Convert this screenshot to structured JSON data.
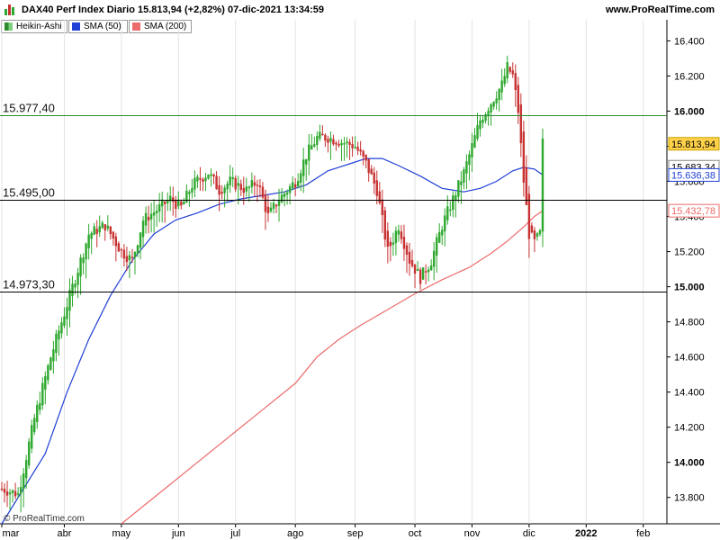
{
  "header": {
    "title": "DAX40 Perf Index Diario 15.813,94 (+2,82%) 07-dic-2021 13:34:59",
    "site": "www.ProRealTime.com"
  },
  "legend": [
    {
      "label": "Heikin-Ashi",
      "color": "#2e8b2e"
    },
    {
      "label": "SMA (50)",
      "color": "#1f3fd6"
    },
    {
      "label": "SMA (200)",
      "color": "#ec6b6b"
    }
  ],
  "watermark": "© ProRealTime.com",
  "colors": {
    "up": "#2ea82e",
    "down": "#c83232",
    "sma50": "#1f3fd6",
    "sma200": "#ec6b6b",
    "resistance": "#2e8b2e",
    "level": "#000000"
  },
  "chart_data": {
    "type": "candlestick",
    "subtype": "heikin-ashi",
    "y_axis_side": "right",
    "ylim": [
      13650,
      16520
    ],
    "ytick_labels": [
      "13.800",
      "14.000",
      "14.200",
      "14.400",
      "14.600",
      "14.800",
      "15.000",
      "15.200",
      "15.400",
      "15.600",
      "15.800",
      "16.000",
      "16.200",
      "16.400"
    ],
    "ytick_values": [
      13800,
      14000,
      14200,
      14400,
      14600,
      14800,
      15000,
      15200,
      15400,
      15600,
      15800,
      16000,
      16200,
      16400
    ],
    "ytick_bold": [
      14000,
      15000,
      16000
    ],
    "xaxis_months": [
      {
        "label": "mar",
        "index": 0
      },
      {
        "label": "abr",
        "index": 23
      },
      {
        "label": "may",
        "index": 44
      },
      {
        "label": "jun",
        "index": 65
      },
      {
        "label": "jul",
        "index": 86
      },
      {
        "label": "ago",
        "index": 108
      },
      {
        "label": "sep",
        "index": 130
      },
      {
        "label": "oct",
        "index": 152
      },
      {
        "label": "nov",
        "index": 173
      },
      {
        "label": "dic",
        "index": 194
      },
      {
        "label": "2022",
        "index": 215,
        "bold": true
      },
      {
        "label": "feb",
        "index": 236
      }
    ],
    "n_slots": 260,
    "horizontal_levels": [
      {
        "value": 15977.4,
        "label": "15.977,40",
        "color": "#2e8b2e"
      },
      {
        "value": 15495.0,
        "label": "15.495,00",
        "color": "#000000"
      },
      {
        "value": 14973.3,
        "label": "14.973,30",
        "color": "#000000"
      }
    ],
    "price_tags": [
      {
        "value": 15813.94,
        "label": "15.813,94",
        "bg": "#ffd24a",
        "fg": "#000000",
        "border": "#caa000"
      },
      {
        "value": 15683.34,
        "label": "15.683,34",
        "bg": "#ffffff",
        "fg": "#000000",
        "border": "#888888"
      },
      {
        "value": 15636.38,
        "label": "15.636,38",
        "bg": "#ffffff",
        "fg": "#1f3fd6",
        "border": "#1f3fd6"
      },
      {
        "value": 15432.78,
        "label": "15.432,78",
        "bg": "#ffffff",
        "fg": "#ec6b6b",
        "border": "#ec6b6b"
      }
    ],
    "close_path": [
      [
        0,
        13850
      ],
      [
        6,
        13820
      ],
      [
        12,
        14250
      ],
      [
        18,
        14600
      ],
      [
        22,
        14800
      ],
      [
        28,
        15100
      ],
      [
        32,
        15300
      ],
      [
        38,
        15350
      ],
      [
        44,
        15200
      ],
      [
        48,
        15150
      ],
      [
        52,
        15380
      ],
      [
        58,
        15450
      ],
      [
        62,
        15500
      ],
      [
        66,
        15450
      ],
      [
        70,
        15580
      ],
      [
        76,
        15650
      ],
      [
        80,
        15550
      ],
      [
        84,
        15600
      ],
      [
        90,
        15550
      ],
      [
        94,
        15600
      ],
      [
        98,
        15400
      ],
      [
        102,
        15500
      ],
      [
        108,
        15600
      ],
      [
        112,
        15750
      ],
      [
        116,
        15850
      ],
      [
        120,
        15850
      ],
      [
        126,
        15820
      ],
      [
        130,
        15800
      ],
      [
        134,
        15700
      ],
      [
        138,
        15550
      ],
      [
        142,
        15200
      ],
      [
        146,
        15350
      ],
      [
        150,
        15150
      ],
      [
        154,
        15050
      ],
      [
        158,
        15150
      ],
      [
        162,
        15350
      ],
      [
        166,
        15500
      ],
      [
        170,
        15650
      ],
      [
        173,
        15800
      ],
      [
        176,
        15950
      ],
      [
        180,
        16050
      ],
      [
        184,
        16150
      ],
      [
        186,
        16250
      ],
      [
        188,
        16200
      ],
      [
        190,
        16000
      ],
      [
        192,
        15600
      ],
      [
        194,
        15300
      ],
      [
        196,
        15250
      ],
      [
        198,
        15300
      ],
      [
        199,
        15820
      ]
    ],
    "sma50_path": [
      [
        0,
        13650
      ],
      [
        8,
        13850
      ],
      [
        16,
        14050
      ],
      [
        24,
        14400
      ],
      [
        32,
        14700
      ],
      [
        40,
        14950
      ],
      [
        48,
        15150
      ],
      [
        56,
        15300
      ],
      [
        64,
        15380
      ],
      [
        72,
        15420
      ],
      [
        80,
        15470
      ],
      [
        88,
        15500
      ],
      [
        96,
        15520
      ],
      [
        104,
        15540
      ],
      [
        112,
        15580
      ],
      [
        120,
        15660
      ],
      [
        128,
        15700
      ],
      [
        134,
        15730
      ],
      [
        140,
        15730
      ],
      [
        146,
        15690
      ],
      [
        154,
        15630
      ],
      [
        162,
        15560
      ],
      [
        170,
        15540
      ],
      [
        176,
        15560
      ],
      [
        182,
        15600
      ],
      [
        188,
        15660
      ],
      [
        192,
        15680
      ],
      [
        196,
        15670
      ],
      [
        199,
        15636.38
      ]
    ],
    "sma200_path": [
      [
        44,
        13650
      ],
      [
        52,
        13750
      ],
      [
        60,
        13850
      ],
      [
        72,
        14000
      ],
      [
        84,
        14150
      ],
      [
        96,
        14300
      ],
      [
        108,
        14450
      ],
      [
        116,
        14600
      ],
      [
        124,
        14700
      ],
      [
        132,
        14780
      ],
      [
        142,
        14870
      ],
      [
        152,
        14960
      ],
      [
        162,
        15040
      ],
      [
        172,
        15110
      ],
      [
        180,
        15190
      ],
      [
        186,
        15260
      ],
      [
        192,
        15340
      ],
      [
        196,
        15400
      ],
      [
        199,
        15432.78
      ]
    ]
  }
}
